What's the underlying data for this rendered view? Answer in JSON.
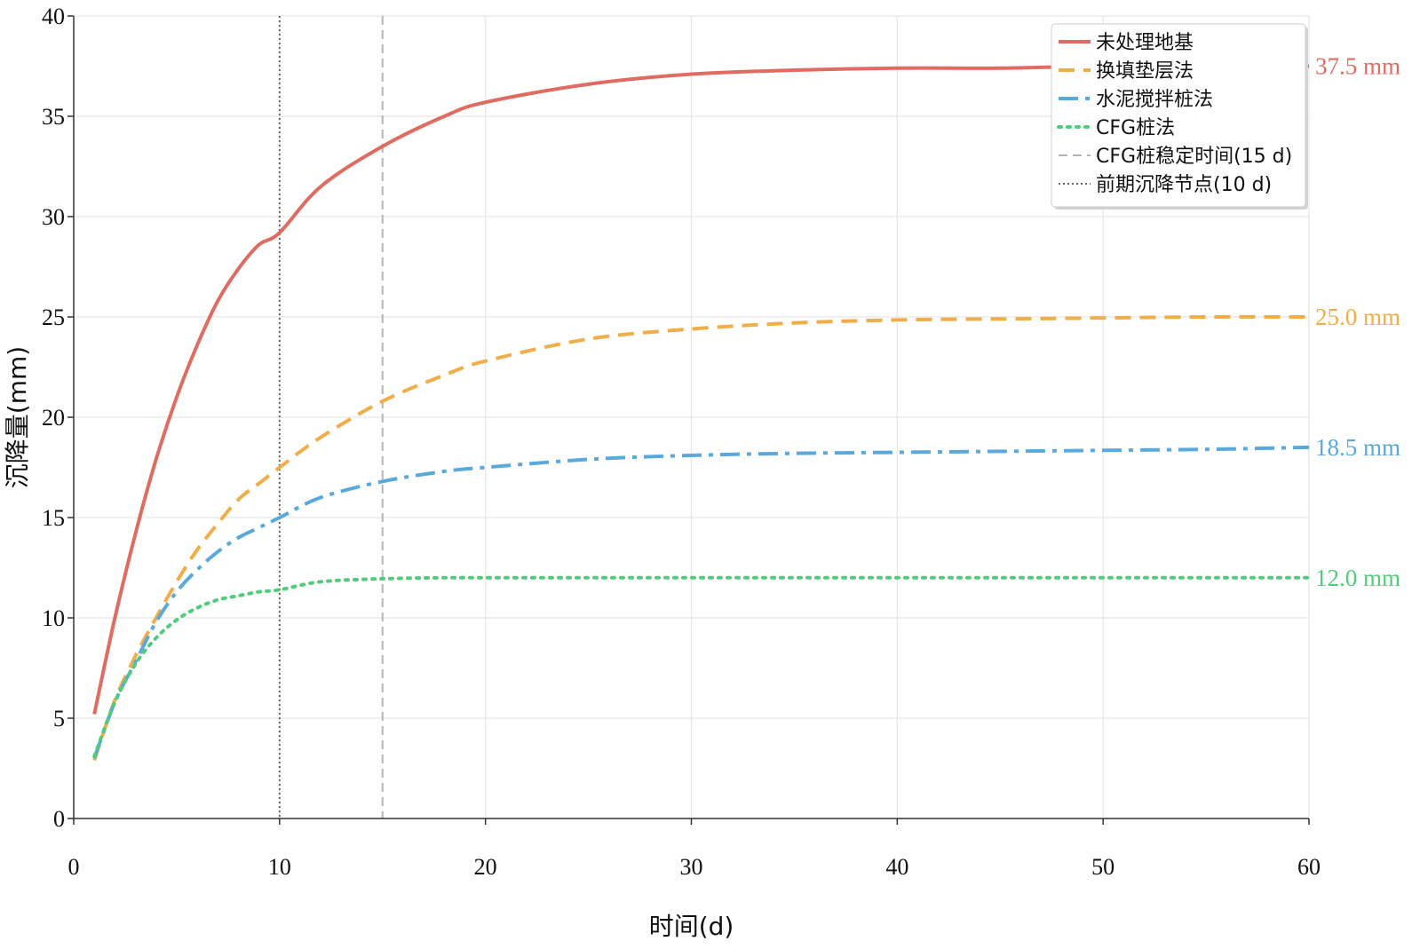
{
  "chart_data": {
    "type": "line",
    "xlabel": "时间(d)",
    "ylabel": "沉降量(mm)",
    "xlim": [
      0,
      60
    ],
    "ylim": [
      0,
      40
    ],
    "xticks": [
      0,
      10,
      20,
      30,
      40,
      50,
      60
    ],
    "yticks": [
      0,
      5,
      10,
      15,
      20,
      25,
      30,
      35,
      40
    ],
    "grid": true,
    "legend_position": "top-right",
    "x": [
      1,
      2,
      3,
      4,
      5,
      6,
      7,
      8,
      9,
      10,
      12,
      15,
      18,
      20,
      25,
      30,
      35,
      40,
      45,
      50,
      55,
      60
    ],
    "series": [
      {
        "name": "未处理地基",
        "color": "#e06c61",
        "style": "solid",
        "values": [
          5.2,
          10.0,
          14.2,
          17.9,
          21.0,
          23.6,
          25.8,
          27.4,
          28.6,
          29.2,
          31.5,
          33.5,
          35.0,
          35.7,
          36.6,
          37.1,
          37.3,
          37.4,
          37.4,
          37.5,
          37.5,
          37.5
        ]
      },
      {
        "name": "换填垫层法",
        "color": "#f0ad48",
        "style": "dashed",
        "values": [
          2.9,
          5.9,
          8.1,
          10.0,
          11.8,
          13.4,
          14.7,
          15.9,
          16.7,
          17.5,
          19.0,
          20.8,
          22.1,
          22.8,
          23.9,
          24.4,
          24.7,
          24.85,
          24.9,
          24.95,
          25.0,
          25.0
        ]
      },
      {
        "name": "水泥搅拌桩法",
        "color": "#5aa9dd",
        "style": "dashdot",
        "values": [
          3.0,
          5.8,
          7.8,
          9.8,
          11.3,
          12.4,
          13.3,
          14.0,
          14.5,
          15.0,
          16.0,
          16.8,
          17.3,
          17.5,
          17.9,
          18.1,
          18.2,
          18.25,
          18.3,
          18.35,
          18.4,
          18.5
        ]
      },
      {
        "name": "CFG桩法",
        "color": "#4fcd7a",
        "style": "dotted",
        "values": [
          3.1,
          5.8,
          7.7,
          9.0,
          9.9,
          10.5,
          10.9,
          11.1,
          11.3,
          11.4,
          11.8,
          11.95,
          12.0,
          12.0,
          12.0,
          12.0,
          12.0,
          12.0,
          12.0,
          12.0,
          12.0,
          12.0
        ]
      }
    ],
    "vlines": [
      {
        "name": "CFG桩稳定时间(15 d)",
        "x": 15,
        "color": "#b5b5b5",
        "style": "dashed"
      },
      {
        "name": "前期沉降节点(10 d)",
        "x": 10,
        "color": "#666666",
        "style": "dotted"
      }
    ],
    "end_labels": [
      {
        "text": "37.5 mm",
        "y": 37.5,
        "color": "#e06c61"
      },
      {
        "text": "25.0 mm",
        "y": 25.0,
        "color": "#f0ad48"
      },
      {
        "text": "18.5 mm",
        "y": 18.5,
        "color": "#5aa9dd"
      },
      {
        "text": "12.0 mm",
        "y": 12.0,
        "color": "#4fcd7a"
      }
    ]
  }
}
